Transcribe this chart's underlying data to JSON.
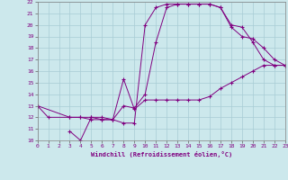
{
  "xlabel": "Windchill (Refroidissement éolien,°C)",
  "xlim": [
    0,
    23
  ],
  "ylim": [
    10,
    22
  ],
  "xticks": [
    0,
    1,
    2,
    3,
    4,
    5,
    6,
    7,
    8,
    9,
    10,
    11,
    12,
    13,
    14,
    15,
    16,
    17,
    18,
    19,
    20,
    21,
    22,
    23
  ],
  "yticks": [
    10,
    11,
    12,
    13,
    14,
    15,
    16,
    17,
    18,
    19,
    20,
    21,
    22
  ],
  "bg_color": "#cce8ec",
  "line_color": "#800080",
  "grid_color": "#a8ccd4",
  "curve1_x": [
    0,
    1,
    3,
    4,
    5,
    6,
    7,
    8,
    9,
    10,
    11,
    12,
    13,
    14,
    15,
    16,
    17,
    18,
    19,
    20,
    21,
    22,
    23
  ],
  "curve1_y": [
    13,
    12,
    12,
    12,
    12,
    11.8,
    11.8,
    11.5,
    11.5,
    20.0,
    21.5,
    21.8,
    21.8,
    21.8,
    21.8,
    21.8,
    21.5,
    20.0,
    19.8,
    18.5,
    17.0,
    16.5,
    16.5
  ],
  "curve2_x": [
    3,
    4,
    5,
    6,
    7,
    8,
    9,
    10,
    11,
    12,
    13,
    14,
    15,
    16,
    17,
    18,
    19,
    20,
    21,
    22,
    23
  ],
  "curve2_y": [
    10.8,
    10.0,
    12.0,
    12.0,
    11.8,
    13.0,
    12.8,
    14.0,
    18.5,
    21.5,
    21.8,
    21.8,
    21.8,
    21.8,
    21.5,
    19.8,
    19.0,
    18.8,
    18.0,
    17.0,
    16.5
  ],
  "curve3_x": [
    0,
    3,
    4,
    5,
    6,
    7,
    8,
    9,
    10,
    11,
    12,
    13,
    14,
    15,
    16,
    17,
    18,
    19,
    20,
    21,
    22,
    23
  ],
  "curve3_y": [
    13,
    12.0,
    12.0,
    11.8,
    11.8,
    11.8,
    15.3,
    12.7,
    13.5,
    13.5,
    13.5,
    13.5,
    13.5,
    13.5,
    13.8,
    14.5,
    15.0,
    15.5,
    16.0,
    16.5,
    16.5,
    16.5
  ]
}
